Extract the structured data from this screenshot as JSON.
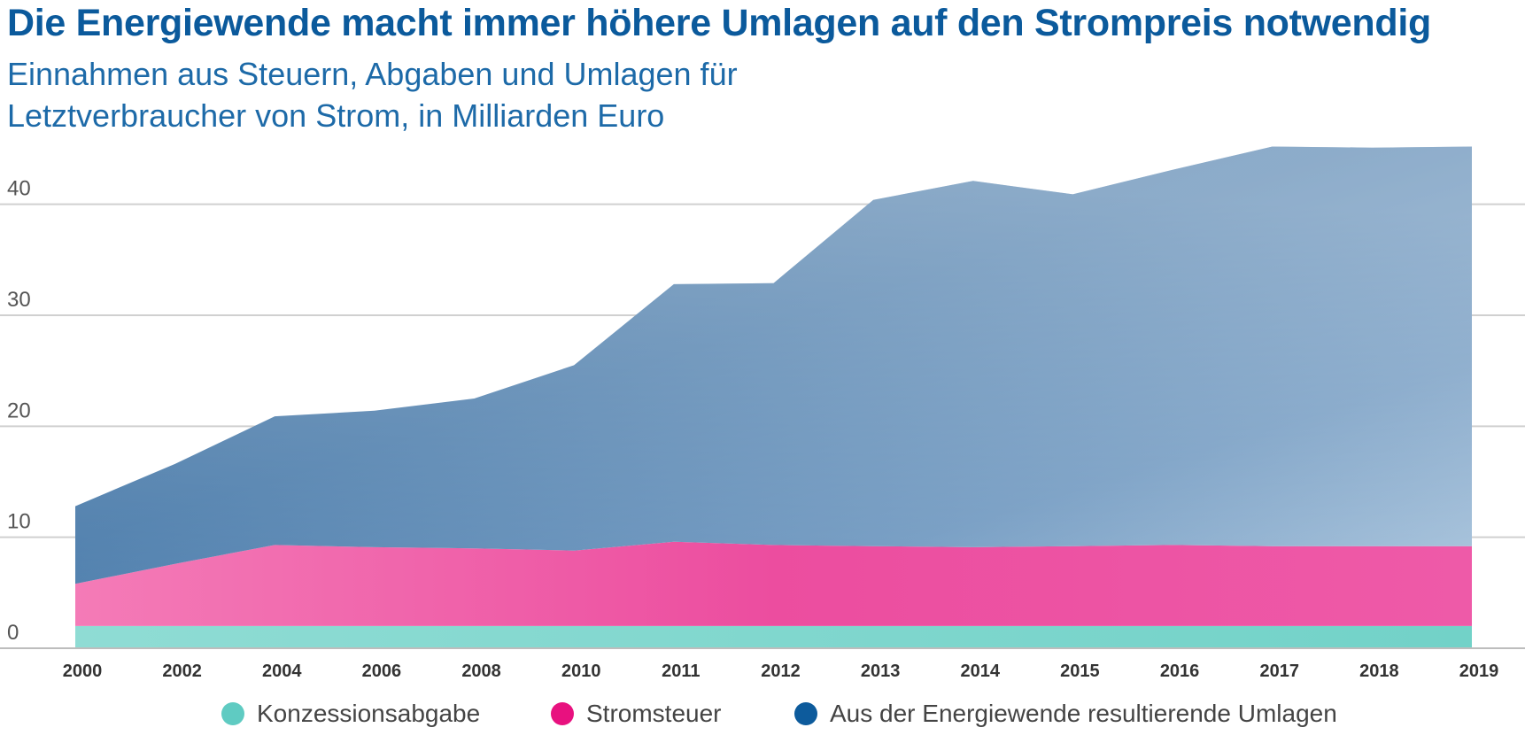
{
  "title": "Die Energiewende macht immer höhere Umlagen auf den Strompreis notwendig",
  "subtitle_lines": [
    "Einnahmen aus Steuern, Abgaben und Umlagen für",
    "Letztverbraucher von Strom, in Milliarden Euro"
  ],
  "colors": {
    "konzession": "#7fd7cf",
    "stromsteuer": "#ee5aa6",
    "umlagen": "#5b88b4",
    "umlagen_dark": "#0b5a9c",
    "grid": "#d0d0d0",
    "title": "#0b5a9c"
  },
  "legend": [
    {
      "label": "Konzessionsabgabe",
      "color": "#5fcbc2"
    },
    {
      "label": "Stromsteuer",
      "color": "#e8117f"
    },
    {
      "label": "Aus der Energiewende resultierende Umlagen",
      "color": "#0d5b9c"
    }
  ],
  "chart_data": {
    "type": "area",
    "stacked": true,
    "x": [
      "2000",
      "2002",
      "2004",
      "2006",
      "2008",
      "2010",
      "2011",
      "2012",
      "2013",
      "2014",
      "2015",
      "2016",
      "2017",
      "2018",
      "2019"
    ],
    "ylim": [
      0,
      45
    ],
    "yticks": [
      0,
      10,
      20,
      30,
      40
    ],
    "grid": true,
    "legend_position": "bottom",
    "series": [
      {
        "name": "Konzessionsabgabe",
        "values": [
          2.0,
          2.0,
          2.0,
          2.0,
          2.0,
          2.0,
          2.0,
          2.0,
          2.0,
          2.0,
          2.0,
          2.0,
          2.0,
          2.0,
          2.0
        ]
      },
      {
        "name": "Stromsteuer",
        "values": [
          3.8,
          5.6,
          7.3,
          7.1,
          7.0,
          6.8,
          7.6,
          7.3,
          7.2,
          7.1,
          7.2,
          7.3,
          7.2,
          7.2,
          7.2
        ]
      },
      {
        "name": "Aus der Energiewende resultierende Umlagen",
        "values": [
          7.0,
          9.0,
          11.6,
          12.3,
          13.5,
          16.7,
          23.2,
          23.6,
          31.2,
          33.0,
          31.7,
          33.8,
          36.0,
          35.9,
          36.0
        ]
      }
    ]
  }
}
